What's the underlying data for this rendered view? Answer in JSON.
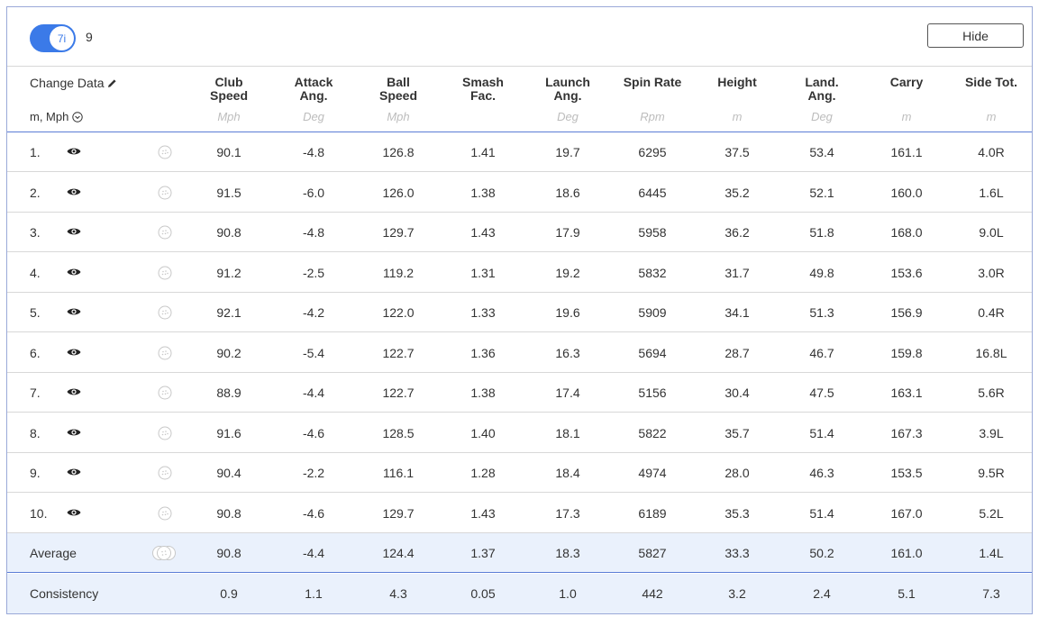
{
  "toolbar": {
    "toggle_label": "7i",
    "club_count": "9",
    "hide_label": "Hide"
  },
  "header": {
    "change_data": "Change Data",
    "units": "m, Mph",
    "columns": [
      {
        "line1": "Club",
        "line2": "Speed",
        "unit": "Mph"
      },
      {
        "line1": "Attack",
        "line2": "Ang.",
        "unit": "Deg"
      },
      {
        "line1": "Ball",
        "line2": "Speed",
        "unit": "Mph"
      },
      {
        "line1": "Smash",
        "line2": "Fac.",
        "unit": ""
      },
      {
        "line1": "Launch",
        "line2": "Ang.",
        "unit": "Deg"
      },
      {
        "line1": "Spin Rate",
        "line2": "",
        "unit": "Rpm"
      },
      {
        "line1": "Height",
        "line2": "",
        "unit": "m"
      },
      {
        "line1": "Land.",
        "line2": "Ang.",
        "unit": "Deg"
      },
      {
        "line1": "Carry",
        "line2": "",
        "unit": "m"
      },
      {
        "line1": "Side Tot.",
        "line2": "",
        "unit": "m"
      }
    ]
  },
  "shots": [
    {
      "num": "1.",
      "values": [
        "90.1",
        "-4.8",
        "126.8",
        "1.41",
        "19.7",
        "6295",
        "37.5",
        "53.4",
        "161.1",
        "4.0R"
      ]
    },
    {
      "num": "2.",
      "values": [
        "91.5",
        "-6.0",
        "126.0",
        "1.38",
        "18.6",
        "6445",
        "35.2",
        "52.1",
        "160.0",
        "1.6L"
      ]
    },
    {
      "num": "3.",
      "values": [
        "90.8",
        "-4.8",
        "129.7",
        "1.43",
        "17.9",
        "5958",
        "36.2",
        "51.8",
        "168.0",
        "9.0L"
      ]
    },
    {
      "num": "4.",
      "values": [
        "91.2",
        "-2.5",
        "119.2",
        "1.31",
        "19.2",
        "5832",
        "31.7",
        "49.8",
        "153.6",
        "3.0R"
      ]
    },
    {
      "num": "5.",
      "values": [
        "92.1",
        "-4.2",
        "122.0",
        "1.33",
        "19.6",
        "5909",
        "34.1",
        "51.3",
        "156.9",
        "0.4R"
      ]
    },
    {
      "num": "6.",
      "values": [
        "90.2",
        "-5.4",
        "122.7",
        "1.36",
        "16.3",
        "5694",
        "28.7",
        "46.7",
        "159.8",
        "16.8L"
      ]
    },
    {
      "num": "7.",
      "values": [
        "88.9",
        "-4.4",
        "122.7",
        "1.38",
        "17.4",
        "5156",
        "30.4",
        "47.5",
        "163.1",
        "5.6R"
      ]
    },
    {
      "num": "8.",
      "values": [
        "91.6",
        "-4.6",
        "128.5",
        "1.40",
        "18.1",
        "5822",
        "35.7",
        "51.4",
        "167.3",
        "3.9L"
      ]
    },
    {
      "num": "9.",
      "values": [
        "90.4",
        "-2.2",
        "116.1",
        "1.28",
        "18.4",
        "4974",
        "28.0",
        "46.3",
        "153.5",
        "9.5R"
      ]
    },
    {
      "num": "10.",
      "values": [
        "90.8",
        "-4.6",
        "129.7",
        "1.43",
        "17.3",
        "6189",
        "35.3",
        "51.4",
        "167.0",
        "5.2L"
      ]
    }
  ],
  "average": {
    "label": "Average",
    "values": [
      "90.8",
      "-4.4",
      "124.4",
      "1.37",
      "18.3",
      "5827",
      "33.3",
      "50.2",
      "161.0",
      "1.4L"
    ]
  },
  "consistency": {
    "label": "Consistency",
    "values": [
      "0.9",
      "1.1",
      "4.3",
      "0.05",
      "1.0",
      "442",
      "3.2",
      "2.4",
      "5.1",
      "7.3"
    ]
  },
  "icons": {
    "toggle": "club-toggle-switch",
    "edit": "pencil-icon",
    "units_dropdown": "chevron-down-circle-icon",
    "visibility": "eye-icon",
    "shot_details": "golf-ball-icon",
    "average_marker": "golf-balls-group-icon"
  },
  "colors": {
    "accent": "#3b7ae8",
    "border": "#9aa9d8",
    "header_rule": "#5b7dd6",
    "summary_bg": "#eaf1fc",
    "unit_text": "#bdbdbd"
  }
}
